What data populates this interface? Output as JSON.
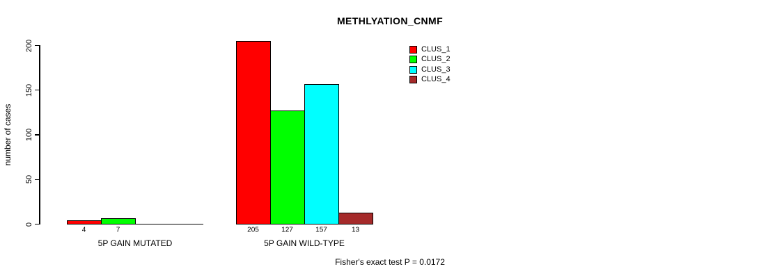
{
  "chart_data": {
    "type": "bar",
    "title": "METHLYATION_CNMF",
    "ylabel": "number of cases",
    "xlabel": "",
    "footnote": "Fisher's exact test P = 0.0172",
    "ylim": [
      0,
      200
    ],
    "yticks": [
      "0",
      "50",
      "100",
      "150",
      "200"
    ],
    "ytick_values": [
      0,
      50,
      100,
      150,
      200
    ],
    "grid": false,
    "legend_position": "top-right",
    "series": [
      {
        "name": "CLUS_1",
        "color": "#ff0000"
      },
      {
        "name": "CLUS_2",
        "color": "#00ff00"
      },
      {
        "name": "CLUS_3",
        "color": "#00ffff"
      },
      {
        "name": "CLUS_4",
        "color": "#a52a2a"
      }
    ],
    "groups": [
      {
        "label": "5P GAIN MUTATED",
        "values": [
          4,
          7,
          0,
          0
        ],
        "value_labels": [
          "4",
          "7",
          "",
          ""
        ]
      },
      {
        "label": "5P GAIN WILD-TYPE",
        "values": [
          205,
          127,
          157,
          13
        ],
        "value_labels": [
          "205",
          "127",
          "157",
          "13"
        ]
      }
    ]
  }
}
